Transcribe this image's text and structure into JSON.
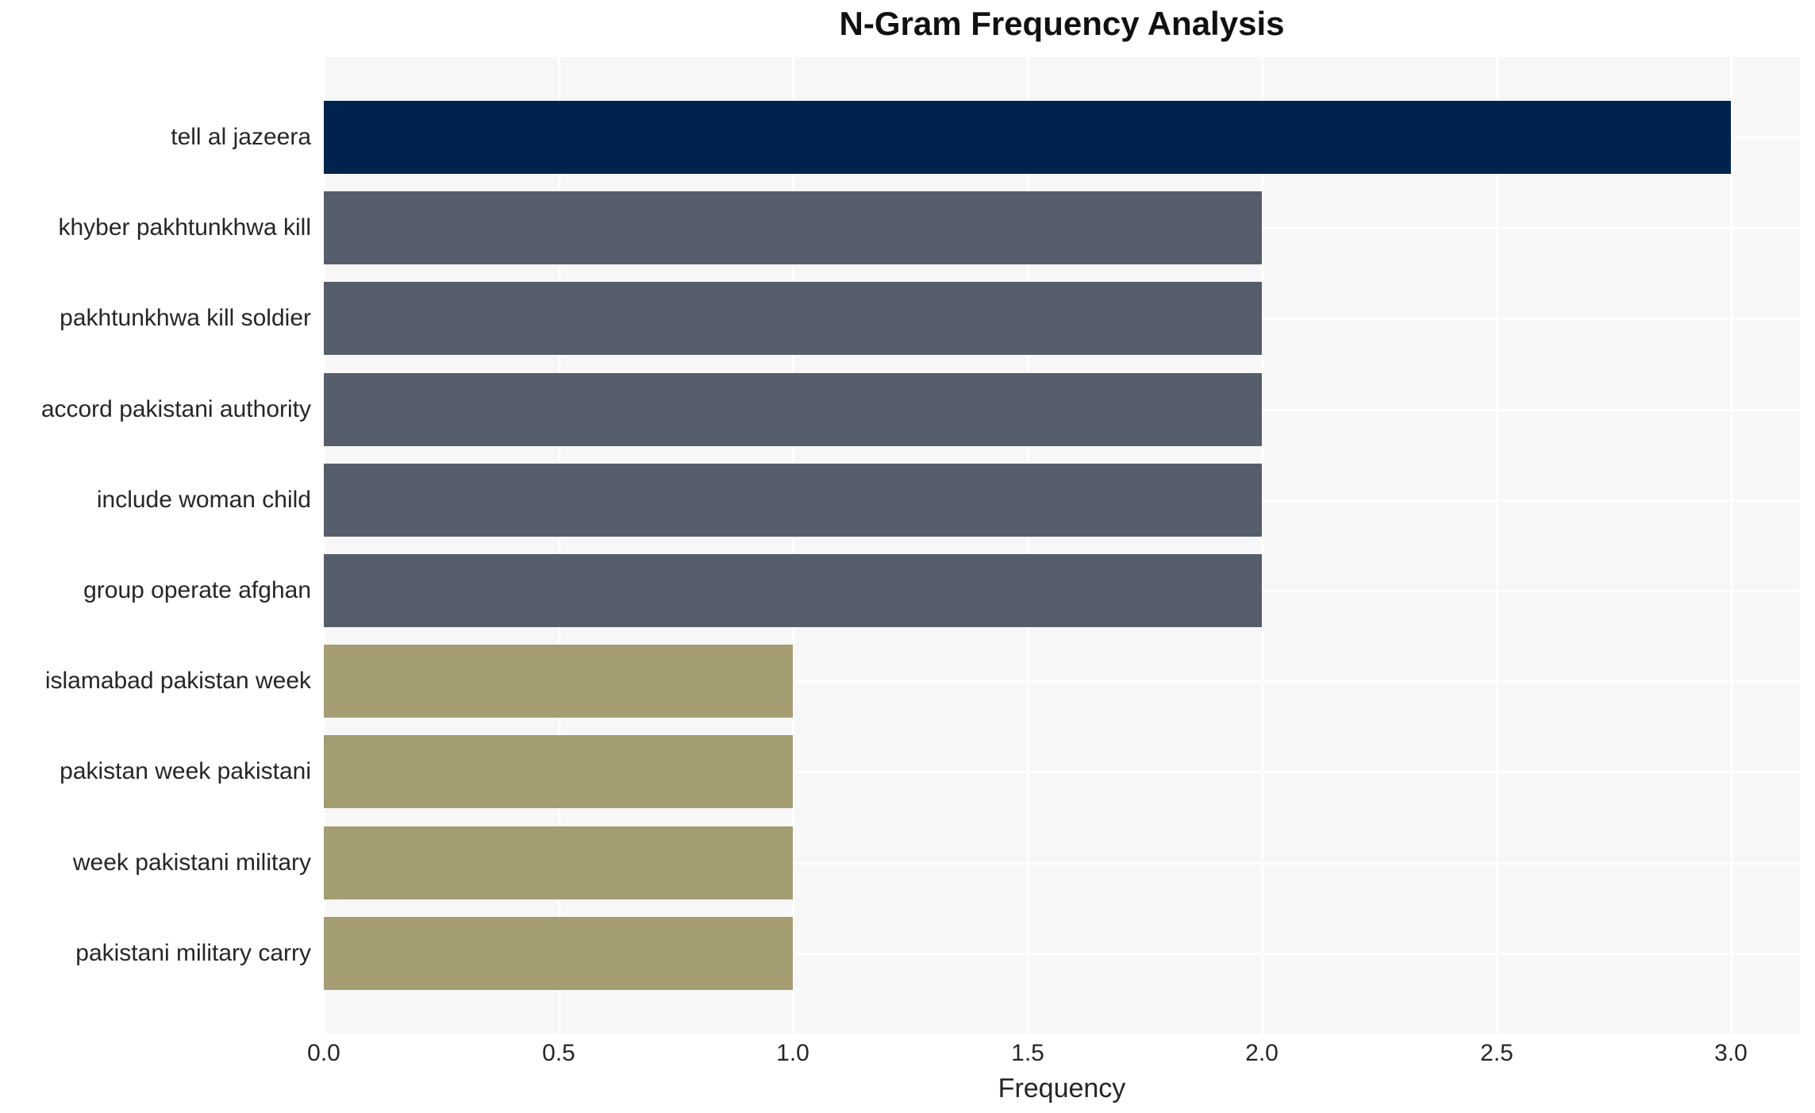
{
  "chart_data": {
    "type": "bar",
    "orientation": "horizontal",
    "title": "N-Gram Frequency Analysis",
    "xlabel": "Frequency",
    "ylabel": "",
    "categories": [
      "tell al jazeera",
      "khyber pakhtunkhwa kill",
      "pakhtunkhwa kill soldier",
      "accord pakistani authority",
      "include woman child",
      "group operate afghan",
      "islamabad pakistan week",
      "pakistan week pakistani",
      "week pakistani military",
      "pakistani military carry"
    ],
    "values": [
      3,
      2,
      2,
      2,
      2,
      2,
      1,
      1,
      1,
      1
    ],
    "bar_colors": [
      "#00234e",
      "#565d6b",
      "#565d6b",
      "#565d6b",
      "#565d6b",
      "#565d6b",
      "#a49d72",
      "#a49d72",
      "#a49d72",
      "#a49d72"
    ],
    "xlim": [
      0,
      3.147
    ],
    "xticks": [
      0,
      0.5,
      1.0,
      1.5,
      2.0,
      2.5,
      3.0
    ],
    "xtick_labels": [
      "0.0",
      "0.5",
      "1.0",
      "1.5",
      "2.0",
      "2.5",
      "3.0"
    ],
    "grid": true,
    "legend": false,
    "plot_bg_color": "#f7f7f7",
    "grid_color": "#ffffff",
    "text_color": "#262626"
  }
}
